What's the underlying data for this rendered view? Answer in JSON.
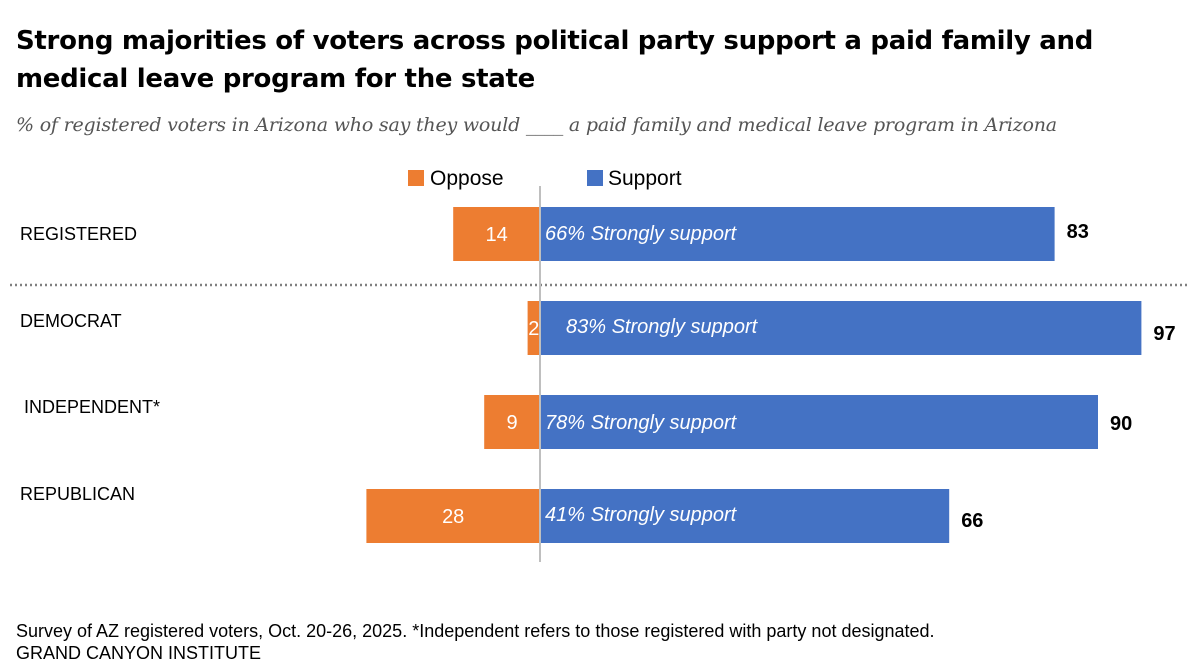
{
  "title": "Strong majorities of voters across political party support a paid family and medical leave program for the state",
  "subtitle": "% of registered voters in Arizona who say they would ____ a paid family and medical leave program in Arizona",
  "footer": {
    "note": "Survey of AZ registered voters, Oct. 20-26, 2025. *Independent refers to those registered with party not designated.",
    "source": "GRAND CANYON INSTITUTE"
  },
  "colors": {
    "oppose": "#ED7D31",
    "support": "#4472C4",
    "axis": "#BFBFBF",
    "divider": "#808080"
  },
  "chart_data": {
    "type": "bar",
    "orientation": "horizontal-diverging",
    "categories": [
      "REGISTERED",
      "DEMOCRAT",
      "INDEPENDENT*",
      "REPUBLICAN"
    ],
    "legend": [
      "Oppose",
      "Support"
    ],
    "legend_position": "top",
    "series": [
      {
        "name": "Oppose",
        "values": [
          14,
          2,
          9,
          28
        ]
      },
      {
        "name": "Support",
        "values": [
          83,
          97,
          90,
          66
        ]
      }
    ],
    "strongly_support_labels": [
      "66% Strongly support",
      "83% Strongly support",
      "78% Strongly support",
      "41% Strongly support"
    ],
    "grid": false
  }
}
